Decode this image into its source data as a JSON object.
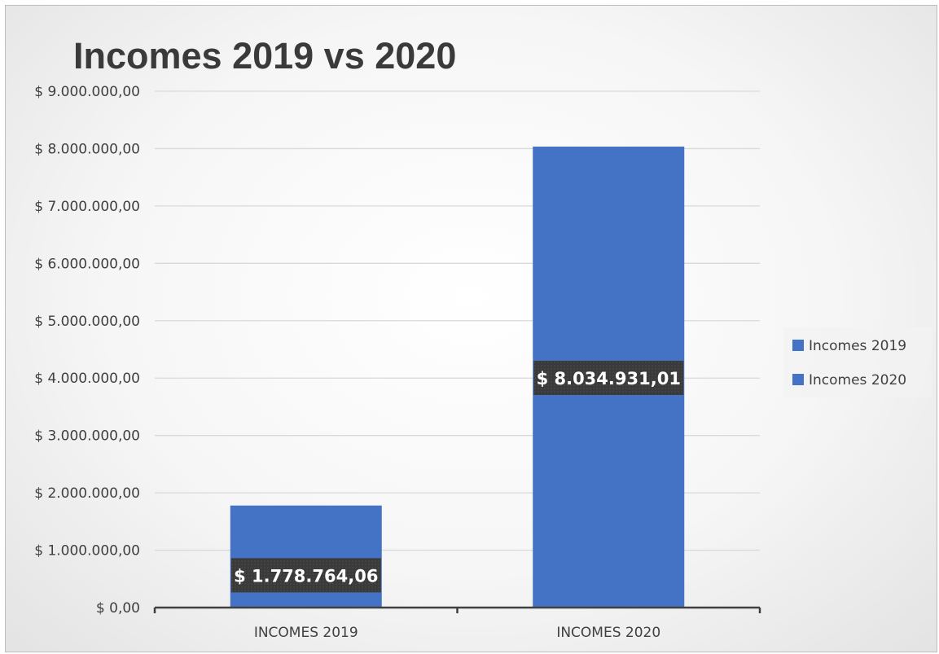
{
  "chart_data": {
    "type": "bar",
    "title": "Incomes 2019 vs 2020",
    "categories": [
      "INCOMES 2019",
      "INCOMES 2020"
    ],
    "values": [
      1778764.06,
      8034931.01
    ],
    "data_labels": [
      "$ 1.778.764,06",
      "$ 8.034.931,01"
    ],
    "ylim": [
      0,
      9000000
    ],
    "y_ticks": [
      0,
      1000000,
      2000000,
      3000000,
      4000000,
      5000000,
      6000000,
      7000000,
      8000000,
      9000000
    ],
    "y_tick_labels": [
      "$ 0,00",
      "$ 1.000.000,00",
      "$ 2.000.000,00",
      "$ 3.000.000,00",
      "$ 4.000.000,00",
      "$ 5.000.000,00",
      "$ 6.000.000,00",
      "$ 7.000.000,00",
      "$ 8.000.000,00",
      "$ 9.000.000,00"
    ],
    "xlabel": "",
    "ylabel": "",
    "grid": true,
    "legend": {
      "position": "right",
      "entries": [
        "Incomes 2019",
        "Incomes 2020"
      ]
    },
    "colors": {
      "bar": "#4472c4",
      "label_box": "#3b3b3b",
      "gridline": "#d9d9d9",
      "axis": "#404040"
    }
  }
}
